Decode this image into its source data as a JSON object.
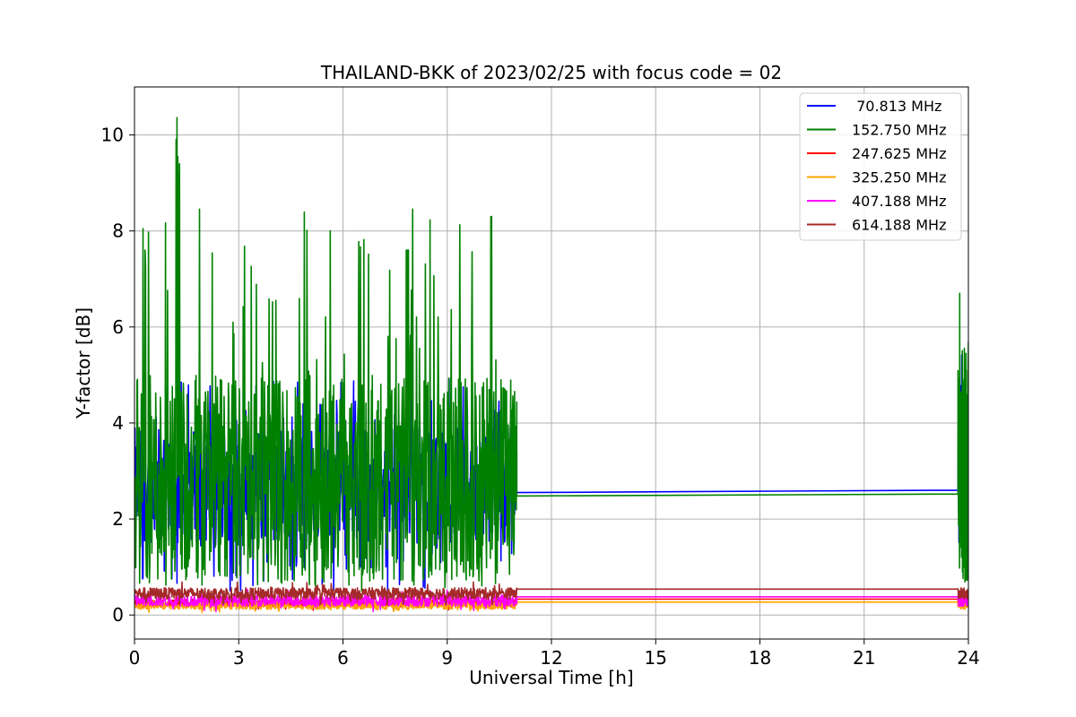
{
  "chart_data": {
    "type": "line",
    "title": "THAILAND-BKK of 2023/02/25 with focus code = 02",
    "xlabel": "Universal Time [h]",
    "ylabel": "Y-factor [dB]",
    "xlim": [
      0,
      24
    ],
    "ylim": [
      -0.5,
      11
    ],
    "xticks": [
      0,
      3,
      6,
      9,
      12,
      15,
      18,
      21,
      24
    ],
    "yticks": [
      0,
      2,
      4,
      6,
      8,
      10
    ],
    "xtick_labels": [
      "0",
      "3",
      "6",
      "9",
      "12",
      "15",
      "18",
      "21",
      "24"
    ],
    "ytick_labels": [
      "0",
      "2",
      "4",
      "6",
      "8",
      "10"
    ],
    "grid": true,
    "legend_position": "top-right",
    "series": [
      {
        "name": " 70.813 MHz",
        "color": "#0000ff",
        "base": 2.7,
        "noise": 1.2,
        "gap_values": [
          2.55,
          2.6
        ],
        "peak": 5.8
      },
      {
        "name": "152.750 MHz",
        "color": "#008000",
        "base": 2.8,
        "noise": 2.2,
        "gap_values": [
          2.48,
          2.52
        ],
        "peak": 10.45
      },
      {
        "name": "247.625 MHz",
        "color": "#ff0000",
        "base": 0.25,
        "noise": 0.08,
        "gap_values": [
          0.33,
          0.33
        ],
        "peak": 0.4
      },
      {
        "name": "325.250 MHz",
        "color": "#ffa500",
        "base": 0.2,
        "noise": 0.08,
        "gap_values": [
          0.27,
          0.27
        ],
        "peak": 0.35
      },
      {
        "name": "407.188 MHz",
        "color": "#ff00ff",
        "base": 0.3,
        "noise": 0.12,
        "gap_values": [
          0.38,
          0.38
        ],
        "peak": 0.6
      },
      {
        "name": "614.188 MHz",
        "color": "#a52a2a",
        "base": 0.45,
        "noise": 0.12,
        "gap_values": [
          0.54,
          0.54
        ],
        "peak": 0.7
      }
    ],
    "data_segments": [
      {
        "x_start": 0,
        "x_end": 11.0
      },
      {
        "x_start": 23.7,
        "x_end": 24
      }
    ]
  }
}
